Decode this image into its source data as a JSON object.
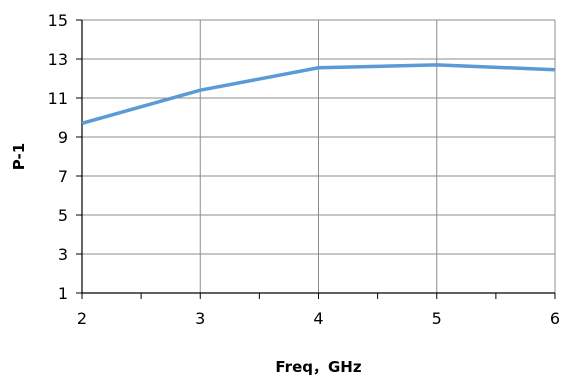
{
  "chart_data": {
    "type": "line",
    "title": "",
    "xlabel": "Freq，GHz",
    "ylabel": "P-1",
    "x": [
      2,
      3,
      4,
      5,
      6
    ],
    "xlim": [
      2,
      6
    ],
    "ylim": [
      1,
      15
    ],
    "x_ticks": [
      2,
      3,
      4,
      5,
      6
    ],
    "y_ticks": [
      1,
      3,
      5,
      7,
      9,
      11,
      13,
      15
    ],
    "grid": true,
    "legend": "none",
    "series": [
      {
        "color": "#5b9bd5",
        "values": [
          9.7,
          11.4,
          12.55,
          12.7,
          12.45
        ]
      }
    ]
  }
}
